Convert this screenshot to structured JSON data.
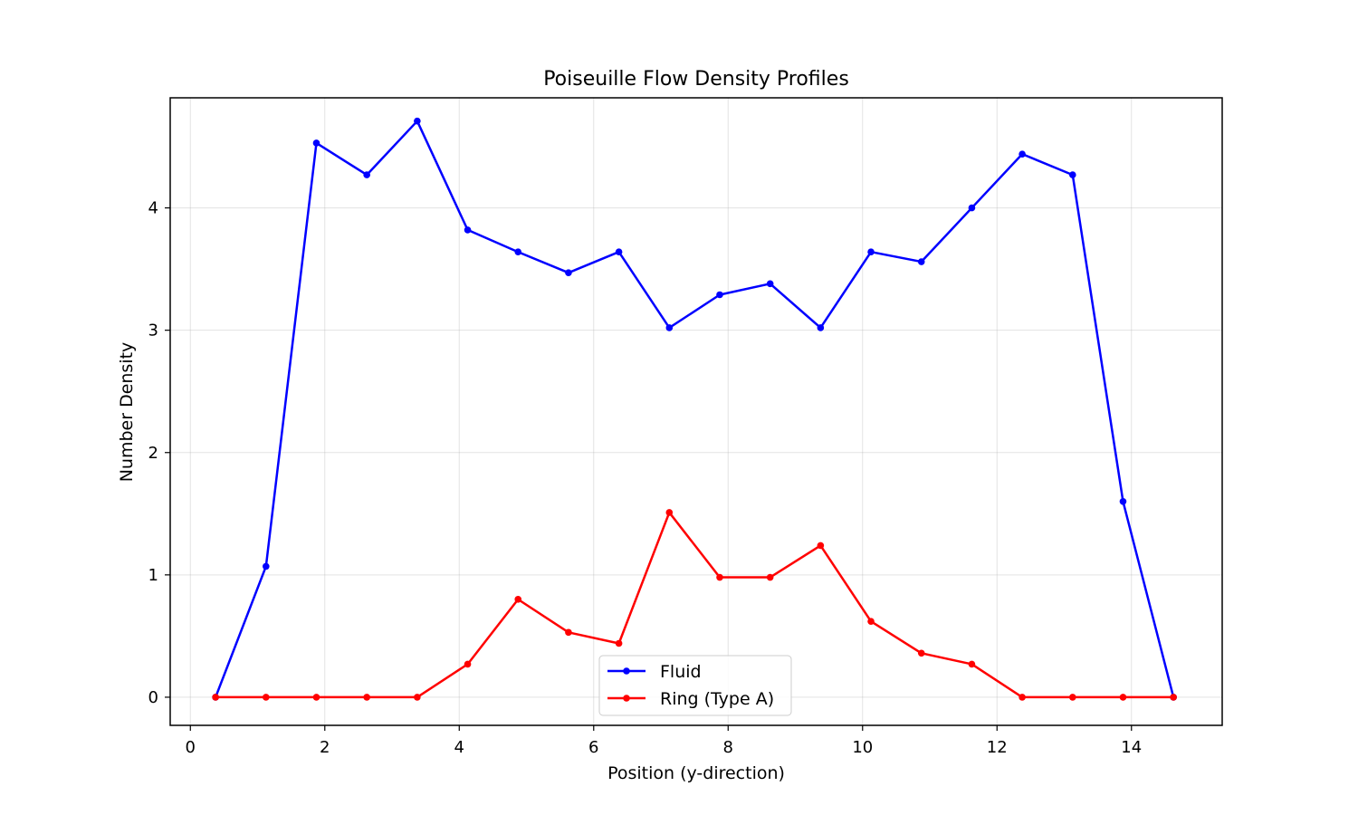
{
  "chart_data": {
    "type": "line",
    "title": "Poiseuille Flow Density Profiles",
    "xlabel": "Position (y-direction)",
    "ylabel": "Number Density",
    "xlim": [
      -0.3,
      15.35
    ],
    "ylim": [
      -0.23,
      4.9
    ],
    "xticks": [
      0,
      2,
      4,
      6,
      8,
      10,
      12,
      14
    ],
    "yticks": [
      0,
      1,
      2,
      3,
      4
    ],
    "grid": true,
    "legend_position": "bottom-center",
    "x": [
      0.375,
      1.125,
      1.875,
      2.625,
      3.375,
      4.125,
      4.875,
      5.625,
      6.375,
      7.125,
      7.875,
      8.625,
      9.375,
      10.125,
      10.875,
      11.625,
      12.375,
      13.125,
      13.875,
      14.625
    ],
    "series": [
      {
        "name": "Fluid",
        "color": "#0000ff",
        "values": [
          0.0,
          1.07,
          4.53,
          4.27,
          4.71,
          3.82,
          3.64,
          3.47,
          3.64,
          3.02,
          3.29,
          3.38,
          3.02,
          3.64,
          3.56,
          4.0,
          4.44,
          4.27,
          1.6,
          0.0
        ]
      },
      {
        "name": "Ring (Type A)",
        "color": "#ff0000",
        "values": [
          0.0,
          0.0,
          0.0,
          0.0,
          0.0,
          0.27,
          0.8,
          0.53,
          0.44,
          1.51,
          0.98,
          0.98,
          1.24,
          0.62,
          0.36,
          0.27,
          0.0,
          0.0,
          0.0,
          0.0
        ]
      }
    ]
  }
}
